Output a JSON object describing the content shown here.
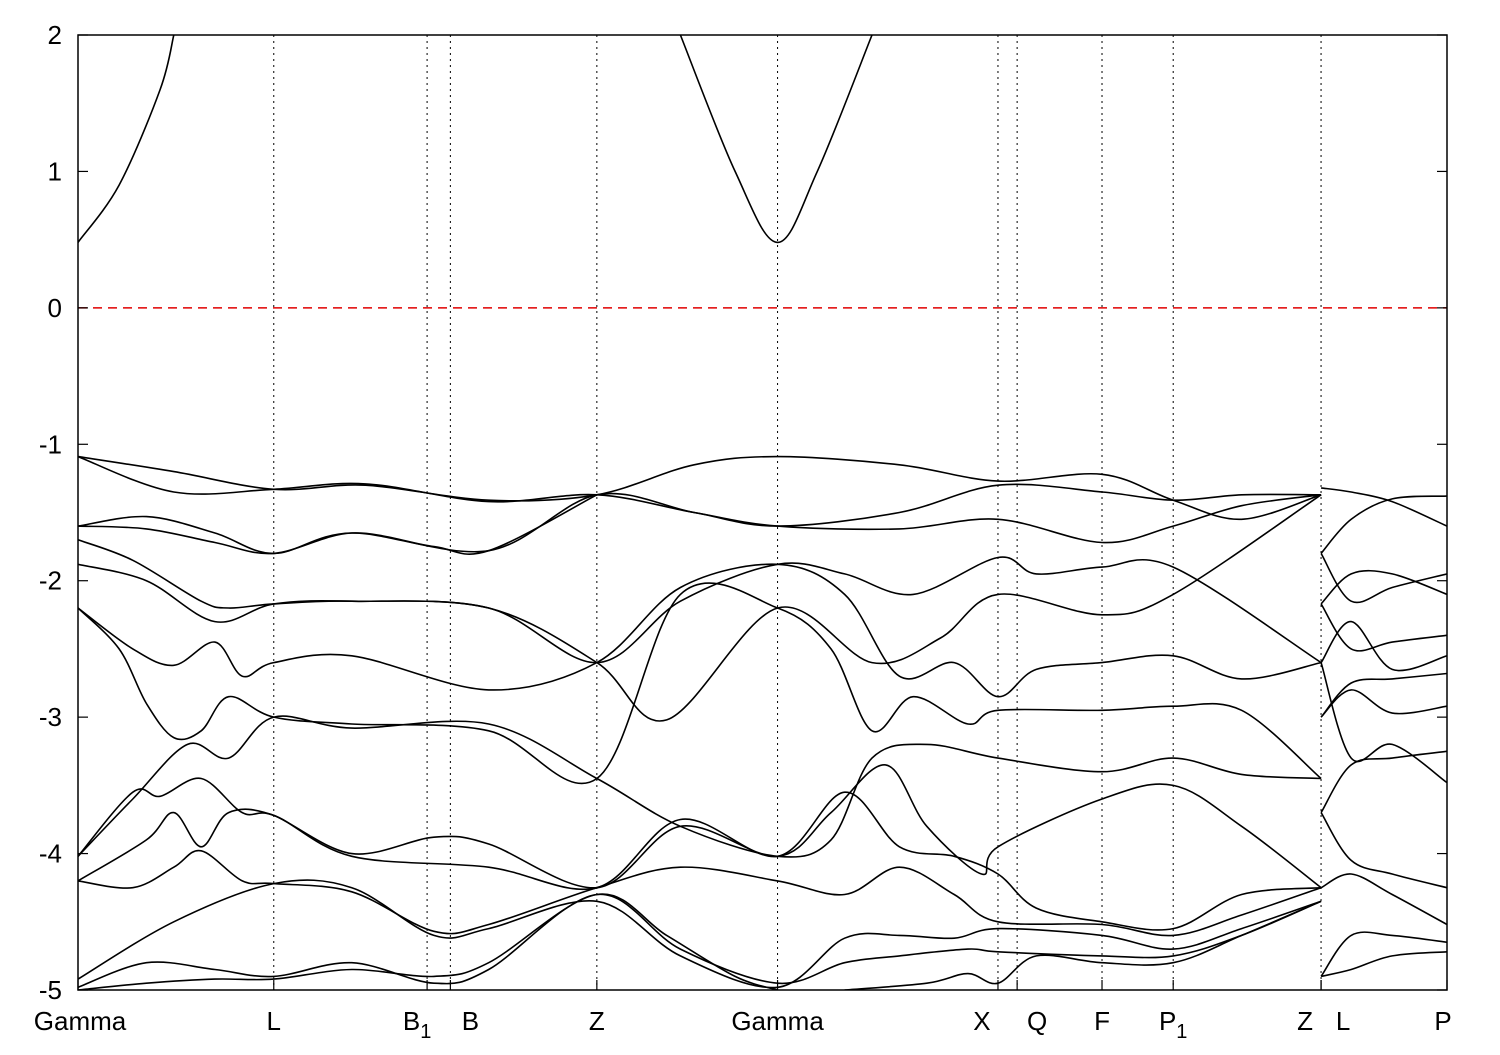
{
  "chart_data": {
    "type": "line",
    "title": "",
    "xlabel": "",
    "ylabel": "",
    "ylim": [
      -5,
      2
    ],
    "y_ticks": [
      2,
      1,
      0,
      -1,
      -2,
      -3,
      -4,
      -5
    ],
    "grid": "vertical dotted lines at high-symmetry points",
    "legend": "none",
    "k_path": [
      {
        "label": "Gamma",
        "sub": "",
        "k": 0.0
      },
      {
        "label": "L",
        "sub": "",
        "k": 0.143
      },
      {
        "label": "B",
        "sub": "1",
        "k": 0.255
      },
      {
        "label": "B",
        "sub": "",
        "k": 0.272
      },
      {
        "label": "Z",
        "sub": "",
        "k": 0.379
      },
      {
        "label": "Gamma",
        "sub": "",
        "k": 0.511
      },
      {
        "label": "X",
        "sub": "",
        "k": 0.672
      },
      {
        "label": "Q",
        "sub": "",
        "k": 0.686
      },
      {
        "label": "F",
        "sub": "",
        "k": 0.748
      },
      {
        "label": "P",
        "sub": "1",
        "k": 0.8
      },
      {
        "label": "Z",
        "sub": "",
        "k": 0.908
      },
      {
        "label": "L",
        "sub": "",
        "k": 0.908
      },
      {
        "label": "P",
        "sub": "",
        "k": 1.0
      }
    ],
    "fermi_level": {
      "y": 0,
      "color": "#e00000"
    },
    "line_color": "#000000",
    "series": [
      {
        "x": [
          0.0,
          0.03,
          0.06,
          0.07
        ],
        "y": [
          0.48,
          0.9,
          1.6,
          2.0
        ]
      },
      {
        "x": [
          0.44,
          0.48,
          0.511,
          0.54,
          0.58
        ],
        "y": [
          2.0,
          1.0,
          0.48,
          1.0,
          2.0
        ]
      },
      {
        "x": [
          0.0,
          0.07,
          0.143,
          0.21,
          0.3,
          0.379,
          0.45,
          0.511,
          0.6,
          0.672,
          0.748,
          0.8,
          0.85,
          0.908
        ],
        "y": [
          -1.09,
          -1.2,
          -1.33,
          -1.3,
          -1.41,
          -1.37,
          -1.15,
          -1.09,
          -1.15,
          -1.27,
          -1.22,
          -1.41,
          -1.55,
          -1.37
        ]
      },
      {
        "x": [
          0.0,
          0.07,
          0.143,
          0.21,
          0.3,
          0.379,
          0.45,
          0.511,
          0.6,
          0.672,
          0.748,
          0.8,
          0.85,
          0.908
        ],
        "y": [
          -1.09,
          -1.35,
          -1.33,
          -1.29,
          -1.42,
          -1.37,
          -1.5,
          -1.6,
          -1.5,
          -1.3,
          -1.35,
          -1.41,
          -1.37,
          -1.37
        ]
      },
      {
        "x": [
          0.0,
          0.05,
          0.1,
          0.143,
          0.2,
          0.3,
          0.379,
          0.45,
          0.511,
          0.6,
          0.672,
          0.748,
          0.8,
          0.85,
          0.908
        ],
        "y": [
          -1.6,
          -1.53,
          -1.65,
          -1.8,
          -1.65,
          -1.78,
          -1.37,
          -1.5,
          -1.6,
          -1.62,
          -1.55,
          -1.72,
          -1.6,
          -1.45,
          -1.37
        ]
      },
      {
        "x": [
          0.0,
          0.05,
          0.1,
          0.143,
          0.2,
          0.26,
          0.3,
          0.379
        ],
        "y": [
          -1.6,
          -1.62,
          -1.72,
          -1.8,
          -1.65,
          -1.75,
          -1.78,
          -1.37
        ]
      },
      {
        "x": [
          0.0,
          0.04,
          0.09,
          0.11,
          0.143,
          0.2,
          0.3,
          0.379,
          0.44,
          0.511,
          0.56,
          0.61,
          0.672,
          0.7,
          0.748,
          0.8,
          0.908
        ],
        "y": [
          -1.7,
          -1.85,
          -2.15,
          -2.2,
          -2.17,
          -2.15,
          -2.2,
          -2.6,
          -2.15,
          -1.88,
          -1.95,
          -2.1,
          -1.83,
          -1.95,
          -1.9,
          -1.9,
          -2.6
        ]
      },
      {
        "x": [
          0.0,
          0.05,
          0.1,
          0.143,
          0.2,
          0.3,
          0.379,
          0.43,
          0.511,
          0.58,
          0.63,
          0.672,
          0.748,
          0.8,
          0.908
        ],
        "y": [
          -1.88,
          -2.0,
          -2.3,
          -2.17,
          -2.15,
          -2.2,
          -2.6,
          -3.02,
          -2.2,
          -2.6,
          -2.42,
          -2.1,
          -2.25,
          -2.1,
          -1.37
        ]
      },
      {
        "x": [
          0.0,
          0.04,
          0.07,
          0.1,
          0.12,
          0.143,
          0.2,
          0.3,
          0.379,
          0.44,
          0.511,
          0.56,
          0.6,
          0.64,
          0.672,
          0.7,
          0.748,
          0.8,
          0.85,
          0.908
        ],
        "y": [
          -2.2,
          -2.5,
          -2.62,
          -2.45,
          -2.7,
          -2.6,
          -2.55,
          -2.8,
          -2.6,
          -2.05,
          -1.88,
          -2.1,
          -2.7,
          -2.6,
          -2.85,
          -2.65,
          -2.6,
          -2.55,
          -2.72,
          -2.6
        ]
      },
      {
        "x": [
          0.0,
          0.03,
          0.05,
          0.07,
          0.09,
          0.11,
          0.143,
          0.2,
          0.3,
          0.379,
          0.44,
          0.511,
          0.55,
          0.58,
          0.61,
          0.65,
          0.672,
          0.748,
          0.8,
          0.85,
          0.908
        ],
        "y": [
          -2.2,
          -2.5,
          -2.9,
          -3.15,
          -3.1,
          -2.85,
          -3.0,
          -3.05,
          -3.1,
          -3.45,
          -2.1,
          -2.2,
          -2.5,
          -3.1,
          -2.85,
          -3.05,
          -2.95,
          -2.95,
          -2.92,
          -2.95,
          -3.45
        ]
      },
      {
        "x": [
          0.0,
          0.04,
          0.08,
          0.11,
          0.143,
          0.2,
          0.3,
          0.379,
          0.44,
          0.511,
          0.55,
          0.58,
          0.62,
          0.672,
          0.748,
          0.8,
          0.85,
          0.908
        ],
        "y": [
          -4.02,
          -3.6,
          -3.2,
          -3.3,
          -3.0,
          -3.08,
          -3.05,
          -3.45,
          -3.8,
          -4.02,
          -3.9,
          -3.3,
          -3.2,
          -3.3,
          -3.4,
          -3.3,
          -3.42,
          -3.45
        ]
      },
      {
        "x": [
          0.0,
          0.04,
          0.06,
          0.09,
          0.12,
          0.143,
          0.2,
          0.26,
          0.3,
          0.379,
          0.44,
          0.511,
          0.55,
          0.59,
          0.62,
          0.66,
          0.672,
          0.748,
          0.8,
          0.85,
          0.908
        ],
        "y": [
          -4.02,
          -3.55,
          -3.58,
          -3.45,
          -3.7,
          -3.72,
          -4.0,
          -3.88,
          -3.93,
          -4.25,
          -3.8,
          -4.02,
          -3.7,
          -3.35,
          -3.8,
          -4.15,
          -3.95,
          -3.6,
          -3.5,
          -3.8,
          -4.25
        ]
      },
      {
        "x": [
          0.0,
          0.05,
          0.07,
          0.09,
          0.11,
          0.143,
          0.2,
          0.3,
          0.379,
          0.44,
          0.511,
          0.56,
          0.6,
          0.64,
          0.672,
          0.7,
          0.748,
          0.8,
          0.85,
          0.908
        ],
        "y": [
          -4.2,
          -3.9,
          -3.7,
          -3.95,
          -3.7,
          -3.72,
          -4.02,
          -4.1,
          -4.25,
          -3.75,
          -4.02,
          -3.55,
          -3.95,
          -4.02,
          -4.15,
          -4.4,
          -4.5,
          -4.55,
          -4.3,
          -4.25
        ]
      },
      {
        "x": [
          0.0,
          0.04,
          0.07,
          0.09,
          0.12,
          0.143,
          0.2,
          0.26,
          0.3,
          0.379,
          0.44,
          0.511,
          0.56,
          0.6,
          0.64,
          0.672,
          0.748,
          0.8,
          0.85,
          0.908
        ],
        "y": [
          -4.2,
          -4.25,
          -4.1,
          -3.98,
          -4.2,
          -4.22,
          -4.28,
          -4.57,
          -4.52,
          -4.25,
          -4.1,
          -4.2,
          -4.3,
          -4.1,
          -4.3,
          -4.5,
          -4.52,
          -4.6,
          -4.45,
          -4.25
        ]
      },
      {
        "x": [
          0.0,
          0.07,
          0.143,
          0.2,
          0.26,
          0.3,
          0.379,
          0.44,
          0.511,
          0.56,
          0.6,
          0.64,
          0.672,
          0.748,
          0.8,
          0.85,
          0.908
        ],
        "y": [
          -4.92,
          -4.5,
          -4.22,
          -4.25,
          -4.6,
          -4.55,
          -4.35,
          -4.75,
          -4.98,
          -4.62,
          -4.6,
          -4.62,
          -4.55,
          -4.6,
          -4.7,
          -4.55,
          -4.35
        ]
      },
      {
        "x": [
          0.0,
          0.05,
          0.1,
          0.143,
          0.2,
          0.26,
          0.3,
          0.379,
          0.44,
          0.511,
          0.56,
          0.6,
          0.65,
          0.672,
          0.748,
          0.8,
          0.85,
          0.908
        ],
        "y": [
          -4.98,
          -4.8,
          -4.85,
          -4.9,
          -4.8,
          -4.95,
          -4.85,
          -4.3,
          -4.7,
          -4.95,
          -4.8,
          -4.75,
          -4.7,
          -4.72,
          -4.75,
          -4.75,
          -4.6,
          -4.35
        ]
      },
      {
        "x": [
          0.0,
          0.05,
          0.1,
          0.143,
          0.2,
          0.26,
          0.3,
          0.379,
          0.43,
          0.48,
          0.511
        ],
        "y": [
          -5.0,
          -4.95,
          -4.92,
          -4.92,
          -4.85,
          -4.9,
          -4.8,
          -4.3,
          -4.6,
          -4.9,
          -5.0
        ]
      },
      {
        "x": [
          0.56,
          0.62,
          0.65,
          0.672,
          0.7,
          0.748,
          0.8,
          0.85,
          0.908
        ],
        "y": [
          -5.0,
          -4.95,
          -4.88,
          -4.95,
          -4.75,
          -4.8,
          -4.8,
          -4.6,
          -4.35
        ]
      },
      {
        "x": [
          0.908,
          0.93,
          0.96,
          1.0
        ],
        "y": [
          -1.32,
          -1.35,
          -1.42,
          -1.6
        ]
      },
      {
        "x": [
          0.908,
          0.93,
          0.96,
          1.0
        ],
        "y": [
          -1.8,
          -1.55,
          -1.4,
          -1.38
        ]
      },
      {
        "x": [
          0.908,
          0.93,
          0.96,
          1.0
        ],
        "y": [
          -2.17,
          -1.95,
          -1.95,
          -2.1
        ]
      },
      {
        "x": [
          0.908,
          0.93,
          0.96,
          1.0
        ],
        "y": [
          -1.8,
          -2.15,
          -2.05,
          -1.95
        ]
      },
      {
        "x": [
          0.908,
          0.93,
          0.96,
          1.0
        ],
        "y": [
          -2.17,
          -2.5,
          -2.45,
          -2.4
        ]
      },
      {
        "x": [
          0.908,
          0.93,
          0.96,
          1.0
        ],
        "y": [
          -2.6,
          -2.3,
          -2.65,
          -2.55
        ]
      },
      {
        "x": [
          0.908,
          0.93,
          0.96,
          1.0
        ],
        "y": [
          -3.0,
          -2.75,
          -2.72,
          -2.68
        ]
      },
      {
        "x": [
          0.908,
          0.93,
          0.96,
          1.0
        ],
        "y": [
          -3.0,
          -2.8,
          -2.97,
          -2.92
        ]
      },
      {
        "x": [
          0.908,
          0.93,
          0.96,
          1.0
        ],
        "y": [
          -2.6,
          -3.3,
          -3.2,
          -3.48
        ]
      },
      {
        "x": [
          0.908,
          0.93,
          0.96,
          1.0
        ],
        "y": [
          -3.7,
          -3.35,
          -3.3,
          -3.25
        ]
      },
      {
        "x": [
          0.908,
          0.93,
          0.96,
          1.0
        ],
        "y": [
          -3.7,
          -4.05,
          -4.15,
          -4.25
        ]
      },
      {
        "x": [
          0.908,
          0.93,
          0.96,
          1.0
        ],
        "y": [
          -4.25,
          -4.15,
          -4.3,
          -4.52
        ]
      },
      {
        "x": [
          0.908,
          0.93,
          0.96,
          1.0
        ],
        "y": [
          -4.9,
          -4.6,
          -4.6,
          -4.65
        ]
      },
      {
        "x": [
          0.908,
          0.93,
          0.96,
          1.0
        ],
        "y": [
          -4.9,
          -4.85,
          -4.75,
          -4.72
        ]
      }
    ]
  }
}
